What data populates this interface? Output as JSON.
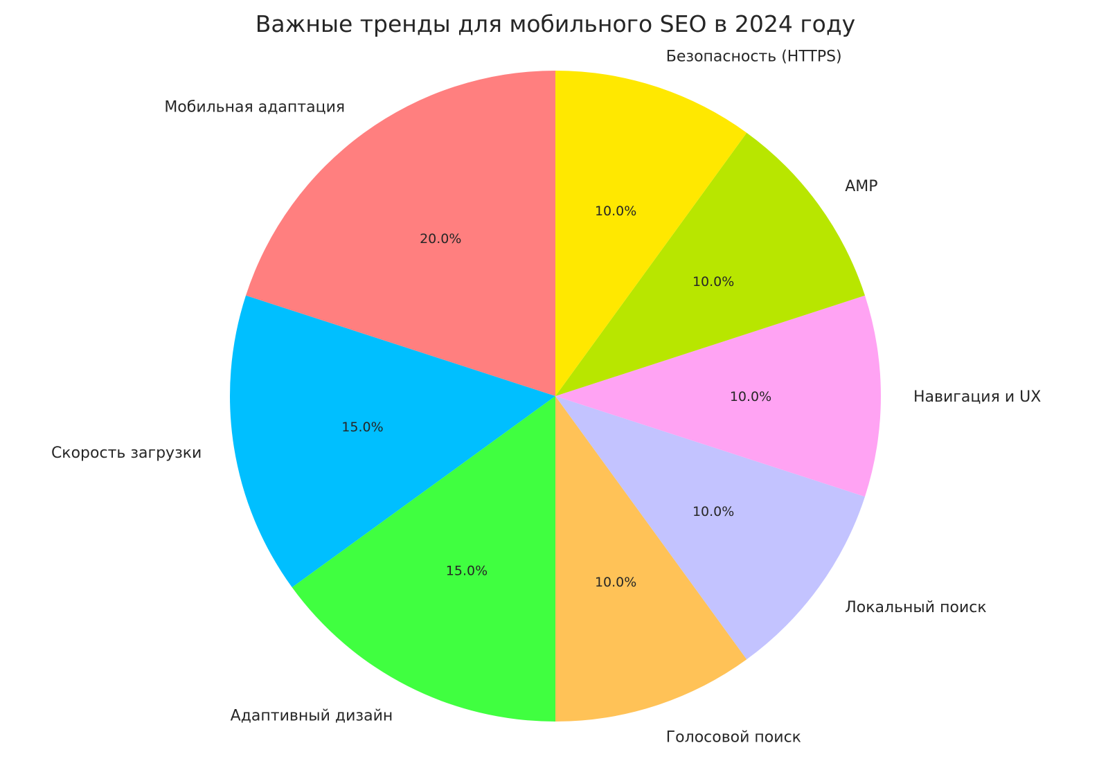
{
  "chart_data": {
    "type": "pie",
    "title": "Важные тренды для мобильного SEO в 2024 году",
    "start_angle_deg": 90,
    "direction": "counterclockwise",
    "categories": [
      "Мобильная адаптация",
      "Скорость загрузки",
      "Адаптивный дизайн",
      "Голосовой поиск",
      "Локальный поиск",
      "Навигация и UX",
      "AMP",
      "Безопасность (HTTPS)"
    ],
    "values": [
      20,
      15,
      15,
      10,
      10,
      10,
      10,
      10
    ],
    "pct_labels": [
      "20.0%",
      "15.0%",
      "15.0%",
      "10.0%",
      "10.0%",
      "10.0%",
      "10.0%",
      "10.0%"
    ],
    "colors": [
      "#ff7f7f",
      "#00bfff",
      "#40ff40",
      "#ffc257",
      "#c3c3ff",
      "#ffa3f3",
      "#b8e600",
      "#ffe800"
    ]
  }
}
